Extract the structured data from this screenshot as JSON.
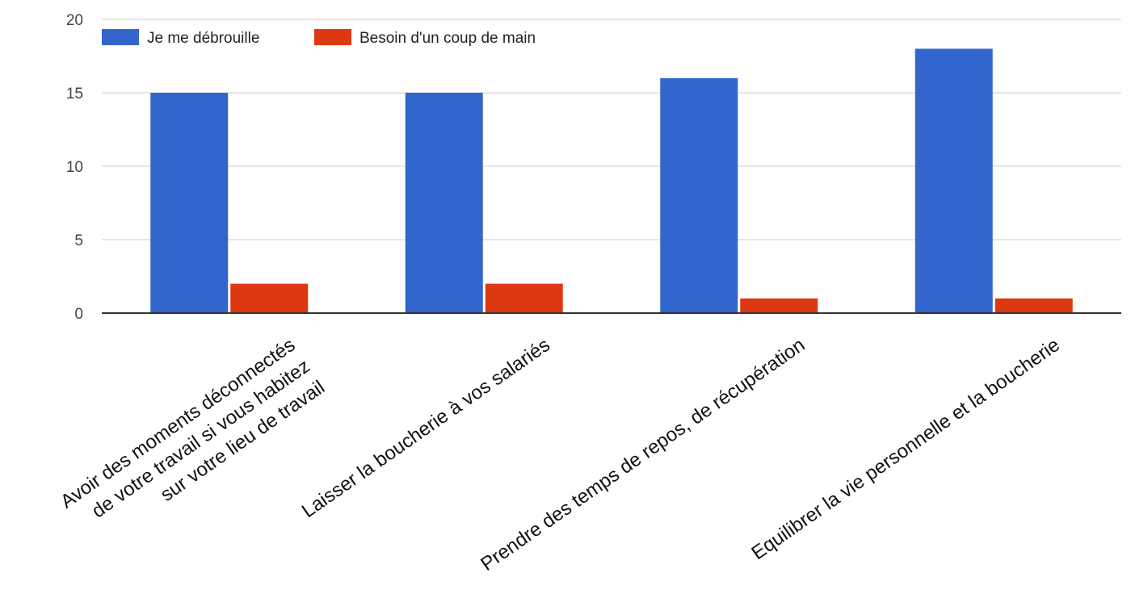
{
  "chart_data": {
    "type": "bar",
    "categories": [
      [
        "Avoir des moments déconnectés",
        "de votre travail si vous habitez",
        "sur votre lieu de travail"
      ],
      [
        "Laisser la boucherie à vos salariés"
      ],
      [
        "Prendre des temps de repos, de récupération"
      ],
      [
        "Equilibrer la vie personnelle et la boucherie"
      ]
    ],
    "series": [
      {
        "name": "Je me débrouille",
        "color": "#3366cc",
        "values": [
          15,
          15,
          16,
          18
        ]
      },
      {
        "name": "Besoin d'un coup de main",
        "color": "#dc3912",
        "values": [
          2,
          2,
          1,
          1
        ]
      }
    ],
    "ylim": [
      0,
      20
    ],
    "yticks": [
      0,
      5,
      10,
      15,
      20
    ],
    "grid": true,
    "legend_position": "top-left"
  }
}
